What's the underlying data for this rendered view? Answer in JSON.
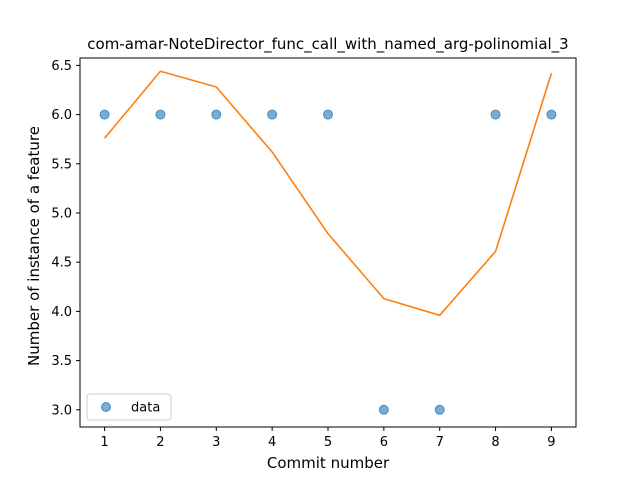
{
  "chart_data": {
    "type": "scatter",
    "title": "com-amar-NoteDirector_func_call_with_named_arg-polinomial_3",
    "xlabel": "Commit number",
    "ylabel": "Number of instance of a feature",
    "xlim": [
      0.56,
      9.44
    ],
    "ylim": [
      2.825,
      6.575
    ],
    "x_ticks": [
      1,
      2,
      3,
      4,
      5,
      6,
      7,
      8,
      9
    ],
    "y_ticks": [
      3.0,
      3.5,
      4.0,
      4.5,
      5.0,
      5.5,
      6.0,
      6.5
    ],
    "y_tick_labels": [
      "3.0",
      "3.5",
      "4.0",
      "4.5",
      "5.0",
      "5.5",
      "6.0",
      "6.5"
    ],
    "grid": false,
    "legend_position": "lower-left",
    "series": [
      {
        "name": "data",
        "kind": "scatter",
        "color": "#1f77b4",
        "x": [
          1,
          2,
          3,
          4,
          5,
          6,
          7,
          8,
          9
        ],
        "y": [
          6,
          6,
          6,
          6,
          6,
          3,
          3,
          6,
          6
        ]
      },
      {
        "kind": "line",
        "color": "#ff7f0e",
        "x": [
          1,
          2,
          3,
          4,
          5,
          6,
          7,
          8,
          9
        ],
        "y": [
          5.76,
          6.44,
          6.28,
          5.62,
          4.79,
          4.13,
          3.96,
          4.61,
          6.42
        ]
      }
    ]
  }
}
